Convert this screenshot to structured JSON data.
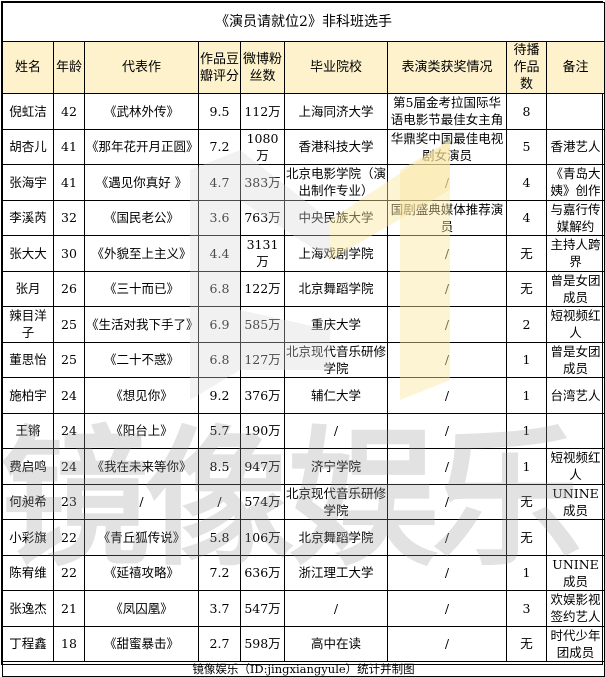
{
  "title": "《演员请就位2》非科班选手",
  "columns": [
    "姓名",
    "年龄",
    "代表作",
    "作品豆瓣评分",
    "微博粉丝数",
    "毕业院校",
    "表演类获奖情况",
    "待播作品数",
    "备注"
  ],
  "rows": [
    [
      "倪虹洁",
      "42",
      "《武林外传》",
      "9.5",
      "112万",
      "上海同济大学",
      "第5届金考拉国际华语电影节最佳女主角",
      "8",
      ""
    ],
    [
      "胡杏儿",
      "41",
      "《那年花开月正圆》",
      "7.2",
      "1080万",
      "香港科技大学",
      "华鼎奖中国最佳电视剧女演员",
      "5",
      "香港艺人"
    ],
    [
      "张海宇",
      "41",
      "《遇见你真好 》",
      "4.7",
      "383万",
      "北京电影学院（演出制作专业）",
      "/",
      "4",
      "《青岛大姨》创作"
    ],
    [
      "李溪芮",
      "32",
      "《国民老公》",
      "3.6",
      "763万",
      "中央民族大学",
      "国剧盛典媒体推荐演员",
      "4",
      "与嘉行传媒解约"
    ],
    [
      "张大大",
      "30",
      "《外貌至上主义》",
      "4.4",
      "3131万",
      "上海戏剧学院",
      "/",
      "无",
      "主持人跨界"
    ],
    [
      "张月",
      "26",
      "《三十而已》",
      "6.8",
      "122万",
      "北京舞蹈学院",
      "/",
      "无",
      "曾是女团成员"
    ],
    [
      "辣目洋子",
      "25",
      "《生活对我下手了》",
      "6.9",
      "585万",
      "重庆大学",
      "/",
      "2",
      "短视频红人"
    ],
    [
      "董思怡",
      "25",
      "《二十不惑》",
      "6.8",
      "127万",
      "北京现代音乐研修学院",
      "/",
      "1",
      "曾是女团成员"
    ],
    [
      "施柏宇",
      "24",
      "《想见你》",
      "9.2",
      "376万",
      "辅仁大学",
      "/",
      "1",
      "台湾艺人"
    ],
    [
      "王锵",
      "24",
      "《阳台上》",
      "5.7",
      "190万",
      "/",
      "/",
      "1",
      ""
    ],
    [
      "费启鸣",
      "24",
      "《我在未来等你》",
      "8.5",
      "947万",
      "济宁学院",
      "/",
      "1",
      "短视频红人"
    ],
    [
      "何昶希",
      "23",
      "/",
      "/",
      "574万",
      "北京现代音乐研修学院",
      "/",
      "无",
      "UNINE成员"
    ],
    [
      "小彩旗",
      "22",
      "《青丘狐传说》",
      "5.8",
      "106万",
      "北京舞蹈学院",
      "/",
      "无",
      ""
    ],
    [
      "陈宥维",
      "22",
      "《延禧攻略》",
      "7.2",
      "636万",
      "浙江理工大学",
      "/",
      "1",
      "UNINE成员"
    ],
    [
      "张逸杰",
      "21",
      "《凤囚凰》",
      "3.7",
      "547万",
      "/",
      "/",
      "3",
      "欢娱影视签约艺人"
    ],
    [
      "丁程鑫",
      "18",
      "《甜蜜暴击》",
      "2.7",
      "598万",
      "高中在读",
      "/",
      "无",
      "时代少年团成员"
    ]
  ],
  "footer": "镜像娱乐（ID:jingxiangyule）统计并制图",
  "watermark": "镜像娱乐",
  "colors": {
    "header_bg": "#fdf2cc",
    "border": "#000000",
    "watermark_logo_yellow": "#fbe7a0",
    "watermark_gray": "#cccccc"
  }
}
